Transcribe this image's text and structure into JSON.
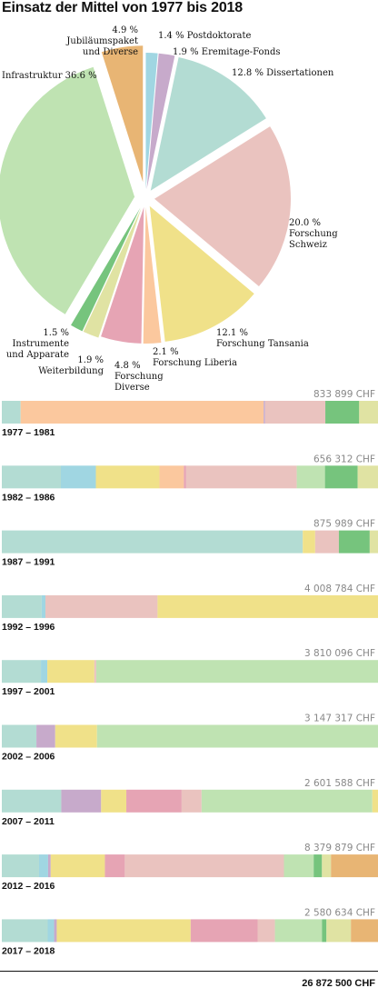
{
  "title": "Einsatz der Mittel von 1977 bis 2018",
  "grand_total": "26 872 500 CHF",
  "colors": {
    "postdoc": "#a0d6e2",
    "eremitage": "#c7aacb",
    "dissertationen": "#b3dcd3",
    "forschung_schweiz": "#eac3bf",
    "forschung_tansania": "#f0e189",
    "forschung_liberia": "#fbc89e",
    "forschung_diverse": "#e6a4b4",
    "weiterbildung": "#e0e3a3",
    "instrumente": "#76c47d",
    "infrastruktur": "#bfe3b2",
    "jubilaeum": "#e8b574"
  },
  "chart_data": [
    {
      "type": "pie",
      "title": "Einsatz der Mittel von 1977 bis 2018",
      "slices": [
        {
          "key": "postdoc",
          "label_lines": [
            "1.4 % Postdoktorate"
          ],
          "value": 1.4
        },
        {
          "key": "eremitage",
          "label_lines": [
            "1.9 % Eremitage-Fonds"
          ],
          "value": 1.9
        },
        {
          "key": "dissertationen",
          "label_lines": [
            "12.8 % Dissertationen"
          ],
          "value": 12.8
        },
        {
          "key": "forschung_schweiz",
          "label_lines": [
            "20.0 %",
            "Forschung",
            "Schweiz"
          ],
          "value": 20.0
        },
        {
          "key": "forschung_tansania",
          "label_lines": [
            "12.1 %",
            "Forschung Tansania"
          ],
          "value": 12.1
        },
        {
          "key": "forschung_liberia",
          "label_lines": [
            "2.1 %",
            "Forschung Liberia"
          ],
          "value": 2.1
        },
        {
          "key": "forschung_diverse",
          "label_lines": [
            "4.8 %",
            "Forschung",
            "Diverse"
          ],
          "value": 4.8
        },
        {
          "key": "weiterbildung",
          "label_lines": [
            "1.9 %",
            "Weiterbildung"
          ],
          "value": 1.9
        },
        {
          "key": "instrumente",
          "label_lines": [
            "1.5 %",
            "Instrumente",
            "und Apparate"
          ],
          "value": 1.5
        },
        {
          "key": "infrastruktur",
          "label_lines": [
            "Infrastruktur 36.6 %"
          ],
          "value": 36.6
        },
        {
          "key": "jubilaeum",
          "label_lines": [
            "4.9 %",
            "Jubiläumspaket",
            "und  Diverse"
          ],
          "value": 4.9
        }
      ]
    },
    {
      "type": "bar",
      "orientation": "horizontal-stacked-percent",
      "unit": "%",
      "periods": [
        {
          "label": "1977 – 1981",
          "total": "833 899 CHF",
          "segments": [
            [
              "dissertationen",
              5.0
            ],
            [
              "forschung_liberia",
              64.6
            ],
            [
              "eremitage",
              0.4
            ],
            [
              "forschung_schweiz",
              16.0
            ],
            [
              "instrumente",
              9.0
            ],
            [
              "weiterbildung",
              5.0
            ]
          ]
        },
        {
          "label": "1982 – 1986",
          "total": "656 312 CHF",
          "segments": [
            [
              "dissertationen",
              15.7
            ],
            [
              "postdoc",
              9.3
            ],
            [
              "forschung_tansania",
              16.9
            ],
            [
              "forschung_liberia",
              6.5
            ],
            [
              "forschung_diverse",
              0.6
            ],
            [
              "forschung_schweiz",
              29.4
            ],
            [
              "infrastruktur",
              7.5
            ],
            [
              "instrumente",
              8.7
            ],
            [
              "weiterbildung",
              5.4
            ]
          ]
        },
        {
          "label": "1987 – 1991",
          "total": "875 989 CHF",
          "segments": [
            [
              "dissertationen",
              80.0
            ],
            [
              "forschung_tansania",
              3.3
            ],
            [
              "forschung_schweiz",
              6.3
            ],
            [
              "instrumente",
              8.2
            ],
            [
              "weiterbildung",
              2.2
            ]
          ]
        },
        {
          "label": "1992 – 1996",
          "total": "4 008 784 CHF",
          "segments": [
            [
              "dissertationen",
              10.6
            ],
            [
              "postdoc",
              1.0
            ],
            [
              "forschung_schweiz",
              29.8
            ],
            [
              "forschung_tansania",
              58.6
            ]
          ]
        },
        {
          "label": "1997 – 2001",
          "total": "3 810 096 CHF",
          "segments": [
            [
              "dissertationen",
              10.4
            ],
            [
              "postdoc",
              1.7
            ],
            [
              "forschung_tansania",
              12.5
            ],
            [
              "forschung_schweiz",
              0.5
            ],
            [
              "infrastruktur",
              74.9
            ]
          ]
        },
        {
          "label": "2002 – 2006",
          "total": "3 147 317 CHF",
          "segments": [
            [
              "dissertationen",
              9.2
            ],
            [
              "eremitage",
              5.0
            ],
            [
              "forschung_tansania",
              11.1
            ],
            [
              "infrastruktur",
              74.7
            ]
          ]
        },
        {
          "label": "2007 – 2011",
          "total": "2 601 588 CHF",
          "segments": [
            [
              "dissertationen",
              15.8
            ],
            [
              "eremitage",
              10.6
            ],
            [
              "forschung_tansania",
              6.7
            ],
            [
              "forschung_diverse",
              14.7
            ],
            [
              "forschung_schweiz",
              5.3
            ],
            [
              "infrastruktur",
              45.4
            ],
            [
              "forschung_tansania",
              1.5
            ]
          ]
        },
        {
          "label": "2012 – 2016",
          "total": "8 379 879 CHF",
          "segments": [
            [
              "dissertationen",
              9.9
            ],
            [
              "postdoc",
              2.4
            ],
            [
              "eremitage",
              0.7
            ],
            [
              "forschung_tansania",
              14.4
            ],
            [
              "forschung_diverse",
              5.3
            ],
            [
              "forschung_schweiz",
              42.3
            ],
            [
              "infrastruktur",
              7.9
            ],
            [
              "instrumente",
              2.2
            ],
            [
              "weiterbildung",
              2.4
            ],
            [
              "jubilaeum",
              12.5
            ]
          ]
        },
        {
          "label": "2017 – 2018",
          "total": "2 580 634 CHF",
          "segments": [
            [
              "dissertationen",
              12.2
            ],
            [
              "postdoc",
              1.7
            ],
            [
              "eremitage",
              0.7
            ],
            [
              "forschung_tansania",
              35.6
            ],
            [
              "forschung_diverse",
              17.8
            ],
            [
              "forschung_schweiz",
              4.6
            ],
            [
              "infrastruktur",
              12.5
            ],
            [
              "instrumente",
              1.2
            ],
            [
              "weiterbildung",
              6.5
            ],
            [
              "jubilaeum",
              7.2
            ]
          ]
        }
      ]
    }
  ]
}
